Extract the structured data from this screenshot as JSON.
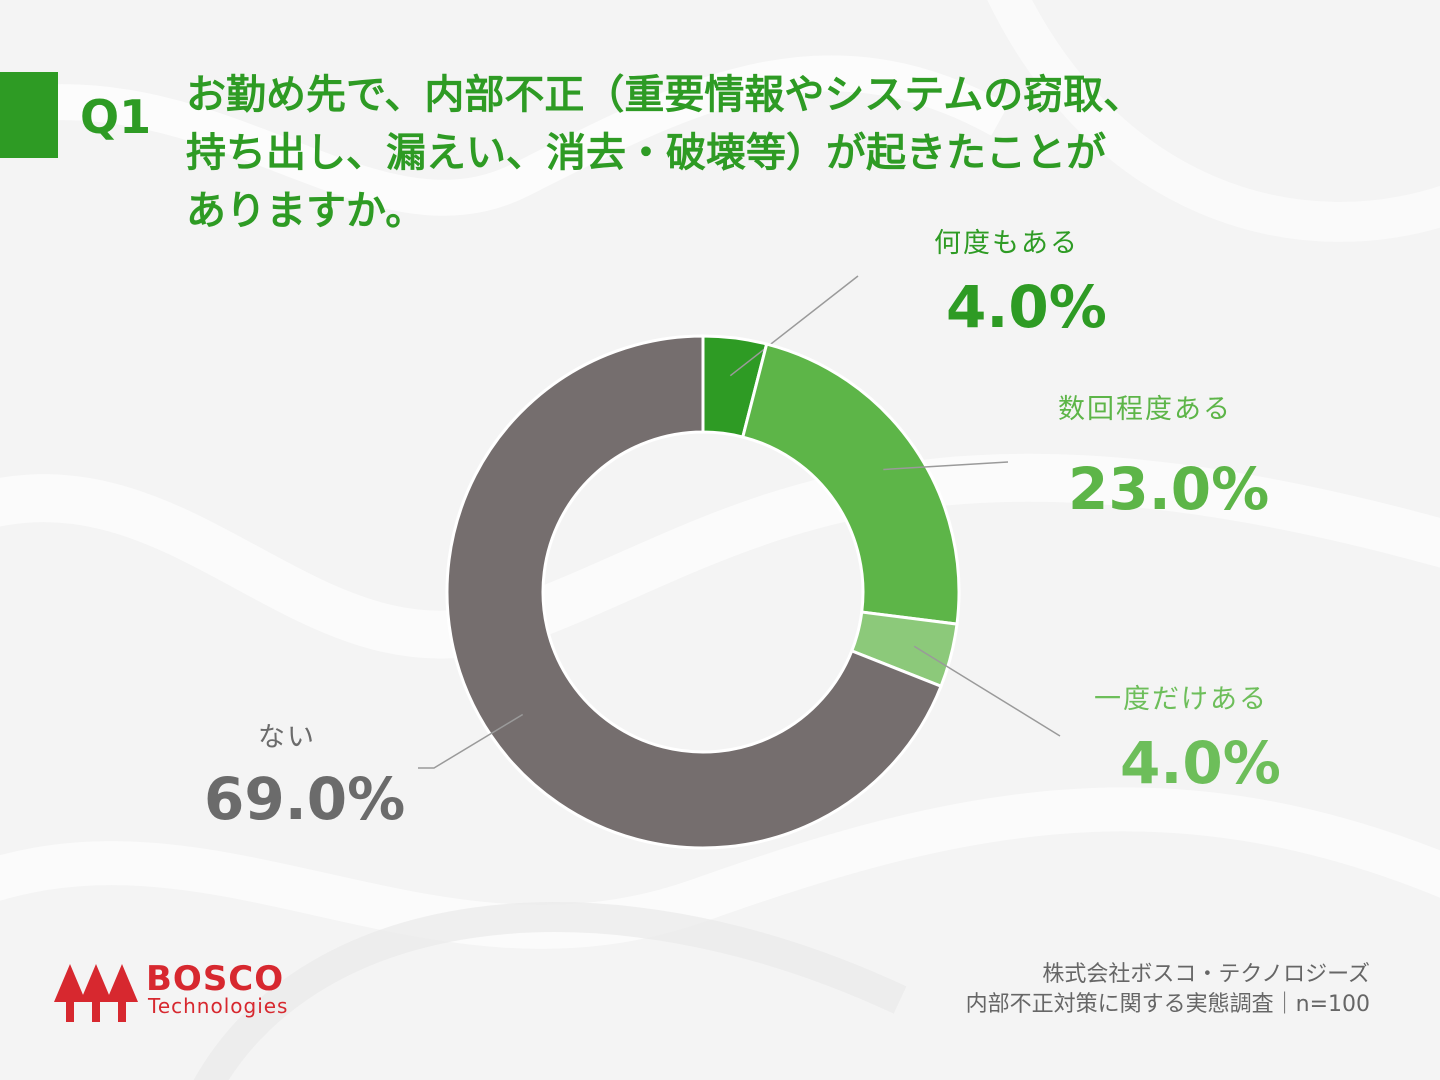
{
  "question": {
    "number": "Q1",
    "text": "お勤め先で、内部不正（重要情報やシステムの窃取、\n持ち出し、漏えい、消去・破壊等）が起きたことが\nありますか。"
  },
  "colors": {
    "accent": "#2e9b24",
    "brand_red": "#d7282f"
  },
  "chart_data": {
    "type": "pie",
    "donut": true,
    "categories": [
      "何度もある",
      "数回程度ある",
      "一度だけある",
      "ない"
    ],
    "values": [
      4.0,
      23.0,
      4.0,
      69.0
    ],
    "value_labels": [
      "4.0%",
      "23.0%",
      "4.0%",
      "69.0%"
    ],
    "colors": [
      "#2e9b24",
      "#5db548",
      "#8cc97a",
      "#756e6e"
    ],
    "label_colors": [
      "#2e9b24",
      "#5db548",
      "#6dbe5a",
      "#6b6b6b"
    ],
    "title": "",
    "legend": "none"
  },
  "footer": {
    "brand_name": "BOSCO",
    "brand_sub": "Technologies",
    "source_line1": "株式会社ボスコ・テクノロジーズ",
    "source_line2": "内部不正対策に関する実態調査｜n=100"
  }
}
